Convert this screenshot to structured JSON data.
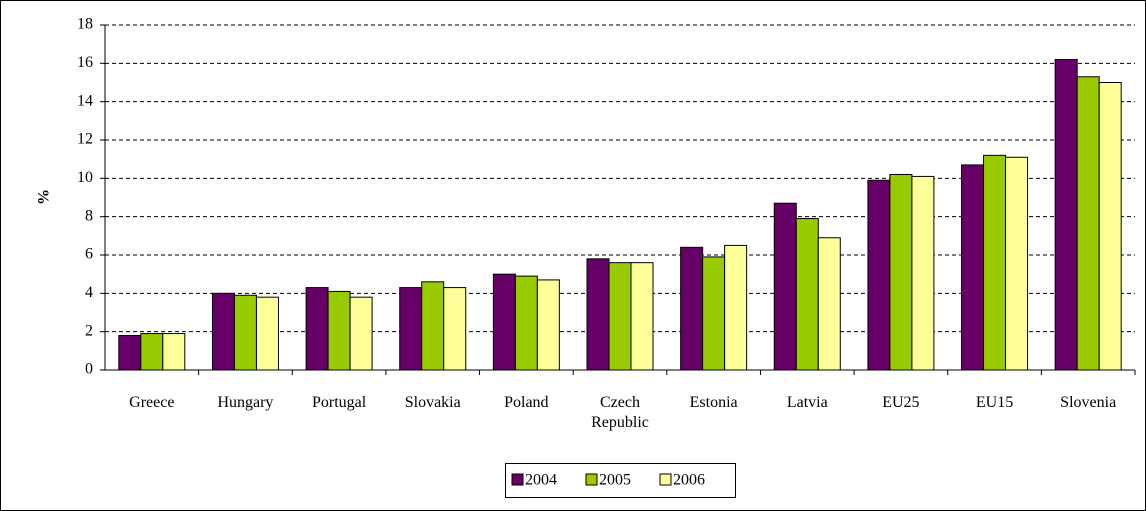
{
  "chart_data": {
    "type": "bar",
    "y_label": "%",
    "categories": [
      "Greece",
      "Hungary",
      "Portugal",
      "Slovakia",
      "Poland",
      "Czech Republic",
      "Estonia",
      "Latvia",
      "EU25",
      "EU15",
      "Slovenia"
    ],
    "series": [
      {
        "name": "2004",
        "color": "#660066",
        "values": [
          1.8,
          4.0,
          4.3,
          4.3,
          5.0,
          5.8,
          6.4,
          8.7,
          9.9,
          10.7,
          16.2
        ]
      },
      {
        "name": "2005",
        "color": "#99cc00",
        "values": [
          1.9,
          3.9,
          4.1,
          4.6,
          4.9,
          5.6,
          5.9,
          7.9,
          10.2,
          11.2,
          15.3
        ]
      },
      {
        "name": "2006",
        "color": "#ffff99",
        "values": [
          1.9,
          3.8,
          3.8,
          4.3,
          4.7,
          5.6,
          6.5,
          6.9,
          10.1,
          11.1,
          15.0
        ]
      }
    ],
    "ylim": [
      0,
      18
    ],
    "yticks": [
      0,
      2,
      4,
      6,
      8,
      10,
      12,
      14,
      16,
      18
    ],
    "grid": true,
    "legend": "bottom"
  }
}
